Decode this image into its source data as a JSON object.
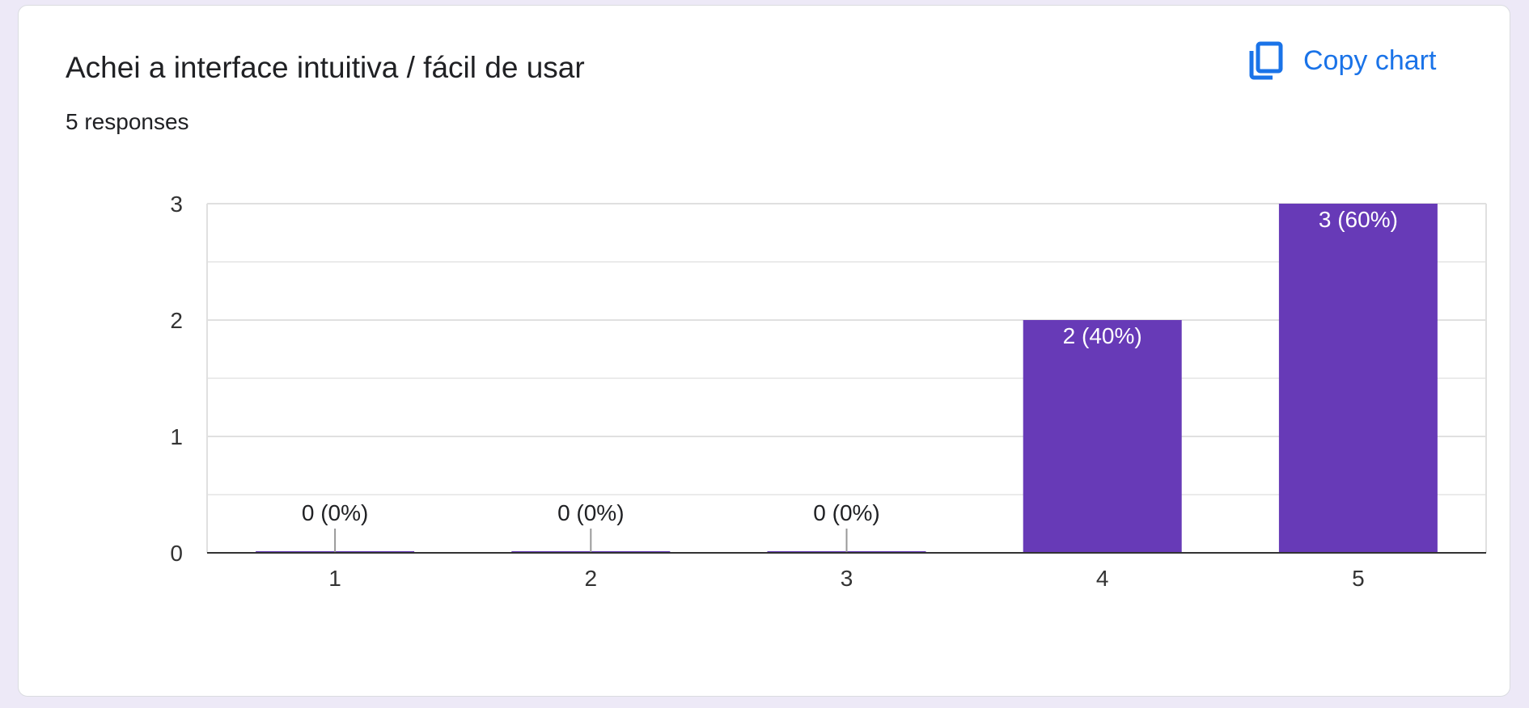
{
  "card": {
    "title": "Achei a interface intuitiva / fácil de usar",
    "responses": "5 responses",
    "copy_label": "Copy chart",
    "copy_icon": "copy-icon"
  },
  "colors": {
    "bar": "#673ab7",
    "accent": "#1a73e8",
    "grid": "#ebebeb",
    "axis": "#333333",
    "text": "#202124"
  },
  "chart_data": {
    "type": "bar",
    "categories": [
      "1",
      "2",
      "3",
      "4",
      "5"
    ],
    "values": [
      0,
      0,
      0,
      2,
      3
    ],
    "data_labels": [
      "0 (0%)",
      "0 (0%)",
      "0 (0%)",
      "2 (40%)",
      "3 (60%)"
    ],
    "title": "Achei a interface intuitiva / fácil de usar",
    "xlabel": "",
    "ylabel": "",
    "ylim": [
      0,
      3
    ],
    "yticks": [
      "0",
      "1",
      "2",
      "3"
    ],
    "grid": true,
    "legend": "none"
  }
}
